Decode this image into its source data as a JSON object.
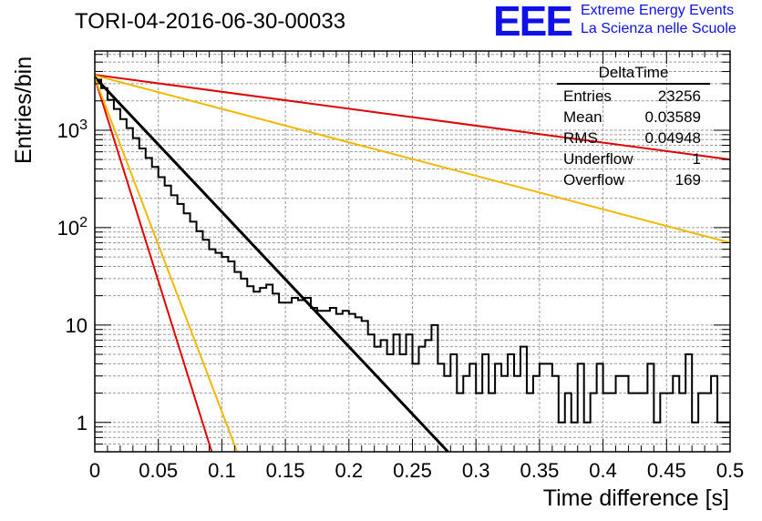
{
  "title": "TORI-04-2016-06-30-00033",
  "logo": {
    "mark": "EEE",
    "line1": "Extreme Energy Events",
    "line2": "La Scienza nelle Scuole",
    "color": "#1010e8"
  },
  "stats_box": {
    "name": "DeltaTime",
    "rows": [
      {
        "label": "Entries",
        "value": "23256"
      },
      {
        "label": "Mean",
        "value": "0.03589"
      },
      {
        "label": "RMS",
        "value": "0.04948"
      },
      {
        "label": "Underflow",
        "value": "1"
      },
      {
        "label": "Overflow",
        "value": "169"
      }
    ]
  },
  "chart_data": {
    "type": "line",
    "title": "TORI-04-2016-06-30-00033",
    "xlabel": "Time difference [s]",
    "ylabel": "Entries/bin",
    "xlim": [
      0,
      0.5
    ],
    "ylim": [
      0.5,
      6500
    ],
    "yscale": "log",
    "grid": true,
    "x_ticks": [
      "0",
      "0.05",
      "0.1",
      "0.15",
      "0.2",
      "0.25",
      "0.3",
      "0.35",
      "0.4",
      "0.45",
      "0.5"
    ],
    "y_ticks": [
      {
        "value": 1,
        "label": "1"
      },
      {
        "value": 10,
        "label": "10"
      },
      {
        "value": 100,
        "label": "10^2"
      },
      {
        "value": 1000,
        "label": "10^3"
      }
    ],
    "histogram": {
      "name": "DeltaTime",
      "bin_width": 0.005,
      "x_start": 0,
      "color": "#000000",
      "values": [
        3300,
        2700,
        2050,
        1650,
        1300,
        1050,
        830,
        650,
        520,
        420,
        330,
        270,
        215,
        175,
        140,
        115,
        92,
        75,
        60,
        55,
        50,
        45,
        35,
        30,
        25,
        22,
        24,
        26,
        21,
        17,
        17,
        19,
        18,
        19,
        15,
        14,
        14,
        15,
        13,
        14,
        13,
        12,
        11,
        8,
        6,
        7,
        5,
        8,
        5,
        8,
        4,
        6,
        7,
        10,
        4,
        3,
        5,
        2,
        3,
        4,
        2,
        5,
        2,
        4,
        3,
        5,
        3,
        6,
        2,
        3,
        4,
        4,
        3,
        1,
        2,
        1,
        4,
        1,
        2,
        4,
        2,
        2,
        3,
        3,
        2,
        2,
        2,
        4,
        1,
        2,
        2,
        3,
        2,
        5,
        1,
        2,
        2,
        3,
        1,
        1
      ]
    },
    "series": [
      {
        "color": "#000000",
        "x": [
          0,
          0.278
        ],
        "values": [
          3500,
          0.5
        ]
      },
      {
        "color": "#e00000",
        "x": [
          0,
          0.5
        ],
        "values": [
          3700,
          500
        ]
      },
      {
        "color": "#f0b800",
        "x": [
          0,
          0.5
        ],
        "values": [
          3650,
          70
        ]
      },
      {
        "color": "#e00000",
        "x": [
          0,
          0.092
        ],
        "values": [
          3450,
          0.5
        ]
      },
      {
        "color": "#f0b800",
        "x": [
          0,
          0.112
        ],
        "values": [
          3450,
          0.5
        ]
      }
    ]
  }
}
